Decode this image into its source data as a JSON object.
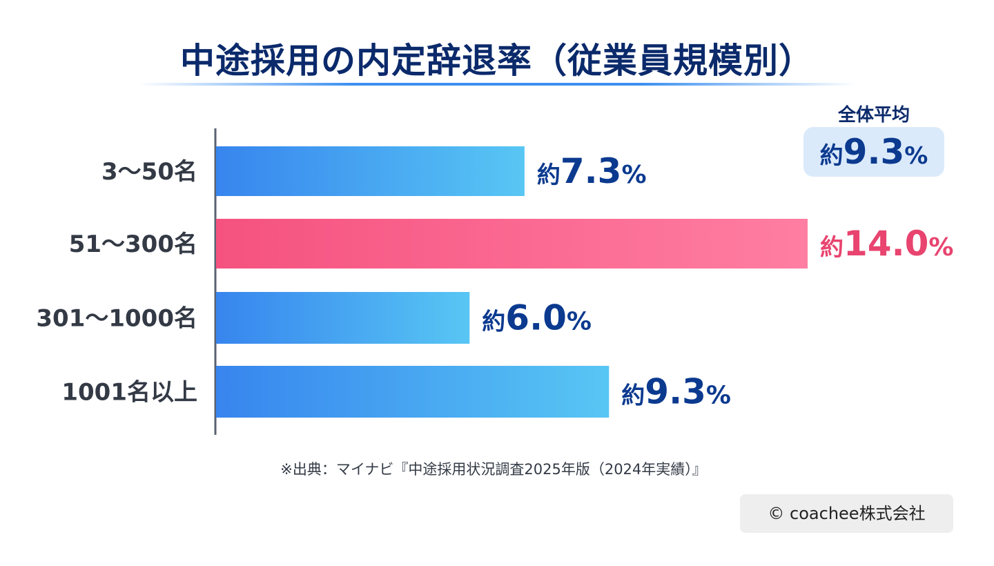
{
  "title": "中途採用の内定辞退率（従業員規模別）",
  "average": {
    "label": "全体平均",
    "prefix": "約",
    "value": "9.3",
    "unit": "%"
  },
  "source": "※出典：マイナビ『中途採用状況調査2025年版（2024年実績）』",
  "copyright": "© coachee株式会社",
  "colors": {
    "blue_start": "#3785ee",
    "blue_end": "#58c6f4",
    "pink_start": "#f5527f",
    "pink_end": "#ff7ea2",
    "value_blue": "#0b3a8f",
    "value_pink": "#e8446f",
    "axis": "#5a6270"
  },
  "chart_data": {
    "type": "bar",
    "orientation": "horizontal",
    "categories": [
      "3～50名",
      "51～300名",
      "301～1000名",
      "1001名以上"
    ],
    "values": [
      7.3,
      14.0,
      6.0,
      9.3
    ],
    "value_labels": [
      "7.3",
      "14.0",
      "6.0",
      "9.3"
    ],
    "value_prefix": "約",
    "value_unit": "%",
    "highlight_index": 1,
    "xlim": [
      0,
      14.0
    ],
    "grid": false,
    "legend": "none"
  }
}
